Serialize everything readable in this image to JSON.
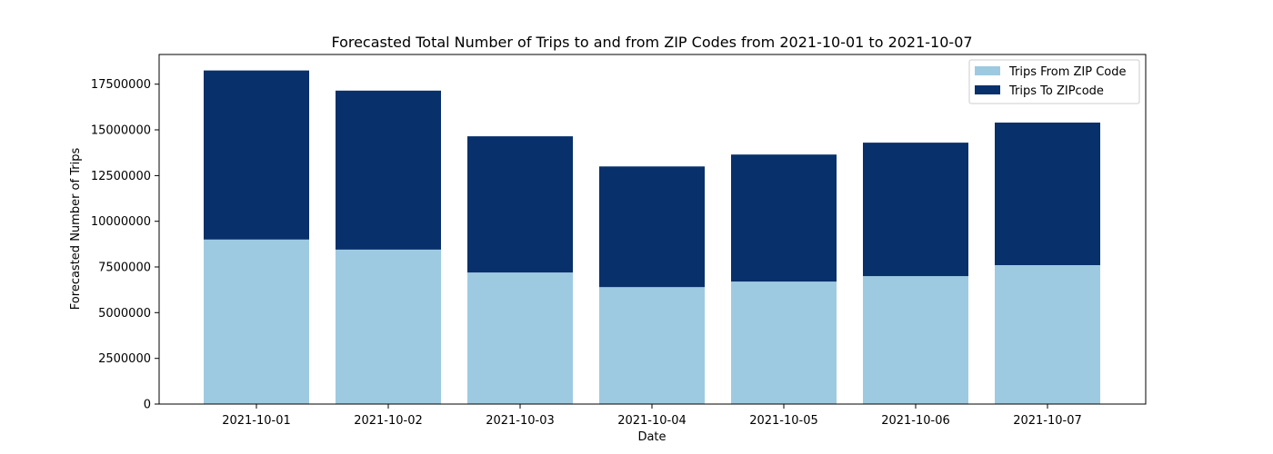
{
  "chart_data": {
    "type": "bar",
    "stacked": true,
    "title": "Forecasted Total Number of Trips to and from ZIP Codes from 2021-10-01 to 2021-10-07",
    "xlabel": "Date",
    "ylabel": "Forecasted Number of Trips",
    "categories": [
      "2021-10-01",
      "2021-10-02",
      "2021-10-03",
      "2021-10-04",
      "2021-10-05",
      "2021-10-06",
      "2021-10-07"
    ],
    "series": [
      {
        "name": "Trips From ZIP Code",
        "color": "#9ecae1",
        "values": [
          9000000,
          8450000,
          7200000,
          6400000,
          6700000,
          7000000,
          7600000
        ]
      },
      {
        "name": "Trips To ZIPcode",
        "color": "#08306b",
        "values": [
          9250000,
          8700000,
          7450000,
          6600000,
          6950000,
          7300000,
          7800000
        ]
      }
    ],
    "yticks": [
      0,
      2500000,
      5000000,
      7500000,
      10000000,
      12500000,
      15000000,
      17500000
    ],
    "ylim": [
      0,
      19125000
    ],
    "grid": false,
    "legend_position": "top-right"
  }
}
